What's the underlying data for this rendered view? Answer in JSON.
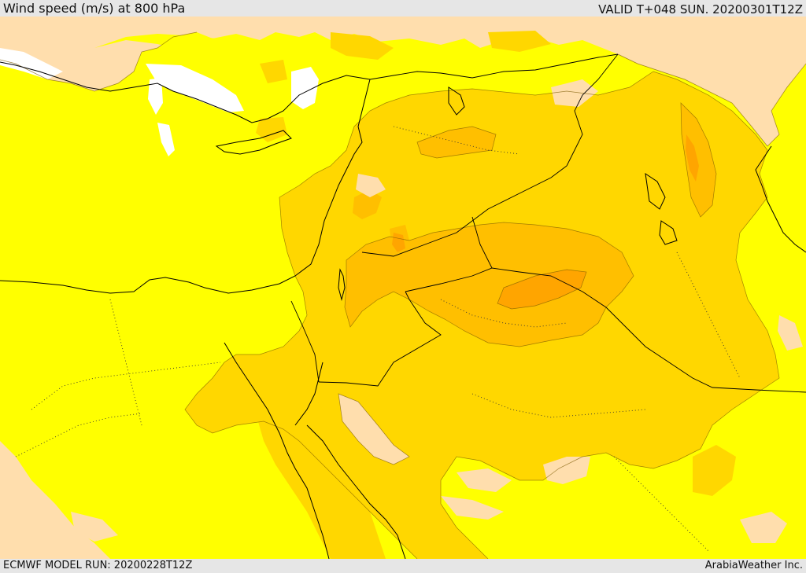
{
  "header": {
    "title": "Wind speed (m/s) at 800 hPa",
    "valid": "VALID T+048 SUN. 20200301T12Z"
  },
  "footer": {
    "model_run": "ECMWF MODEL RUN: 20200228T12Z",
    "credit": "ArabiaWeather Inc."
  },
  "map": {
    "field": "wind-speed-800hPa",
    "fill_colors": {
      "calm": "#ffffff",
      "light": "#ffdead",
      "moderate": "#ffff00",
      "fresh": "#ffd700",
      "strong": "#ffbf00",
      "stronger": "#ffa500",
      "strongest": "#ff8c00"
    },
    "line_color": "#000000"
  }
}
